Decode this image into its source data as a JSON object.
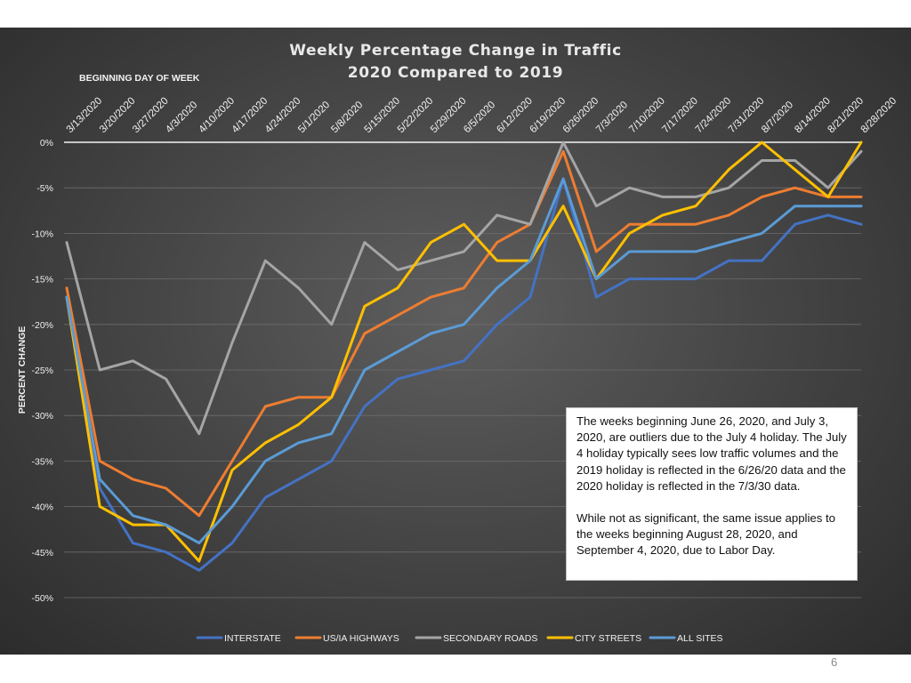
{
  "chart_data": {
    "type": "line",
    "title": [
      "Weekly Percentage Change in Traffic",
      "2020 Compared to 2019"
    ],
    "xlabel": "BEGINNING DAY OF WEEK",
    "ylabel": "PERCENT CHANGE",
    "ylim": [
      -50,
      0
    ],
    "y_ticks": [
      0,
      -5,
      -10,
      -15,
      -20,
      -25,
      -30,
      -35,
      -40,
      -45,
      -50
    ],
    "y_tick_labels": [
      "0%",
      "-5%",
      "-10%",
      "-15%",
      "-20%",
      "-25%",
      "-30%",
      "-35%",
      "-40%",
      "-45%",
      "-50%"
    ],
    "grid": true,
    "legend_position": "bottom",
    "categories": [
      "3/13/2020",
      "3/20/2020",
      "3/27/2020",
      "4/3/2020",
      "4/10/2020",
      "4/17/2020",
      "4/24/2020",
      "5/1/2020",
      "5/8/2020",
      "5/15/2020",
      "5/22/2020",
      "5/29/2020",
      "6/5/2020",
      "6/12/2020",
      "6/19/2020",
      "6/26/2020",
      "7/3/2020",
      "7/10/2020",
      "7/17/2020",
      "7/24/2020",
      "7/31/2020",
      "8/7/2020",
      "8/14/2020",
      "8/21/2020",
      "8/28/2020"
    ],
    "series": [
      {
        "name": "INTERSTATE",
        "color": "#4472c4",
        "values": [
          -17,
          -38,
          -44,
          -45,
          -47,
          -44,
          -39,
          -37,
          -35,
          -29,
          -26,
          -25,
          -24,
          -20,
          -17,
          -4,
          -17,
          -15,
          -15,
          -15,
          -13,
          -13,
          -9,
          -8,
          -9
        ]
      },
      {
        "name": "US/IA HIGHWAYS",
        "color": "#ed7d31",
        "values": [
          -16,
          -35,
          -37,
          -38,
          -41,
          -35,
          -29,
          -28,
          -28,
          -21,
          -19,
          -17,
          -16,
          -11,
          -9,
          -1,
          -12,
          -9,
          -9,
          -9,
          -8,
          -6,
          -5,
          -6,
          -6
        ]
      },
      {
        "name": "SECONDARY ROADS",
        "color": "#a5a5a5",
        "values": [
          -11,
          -25,
          -24,
          -26,
          -32,
          -22,
          -13,
          -16,
          -20,
          -11,
          -14,
          -13,
          -12,
          -8,
          -9,
          0,
          -7,
          -5,
          -6,
          -6,
          -5,
          -2,
          -2,
          -5,
          -1
        ]
      },
      {
        "name": "CITY STREETS",
        "color": "#ffc000",
        "values": [
          -17,
          -40,
          -42,
          -42,
          -46,
          -36,
          -33,
          -31,
          -28,
          -18,
          -16,
          -11,
          -9,
          -13,
          -13,
          -7,
          -15,
          -10,
          -8,
          -7,
          -3,
          0,
          -3,
          -6,
          0
        ]
      },
      {
        "name": "ALL SITES",
        "color": "#5b9bd5",
        "values": [
          -17,
          -37,
          -41,
          -42,
          -44,
          -40,
          -35,
          -33,
          -32,
          -25,
          -23,
          -21,
          -20,
          -16,
          -13,
          -4,
          -15,
          -12,
          -12,
          -12,
          -11,
          -10,
          -7,
          -7,
          -7
        ]
      }
    ]
  },
  "note": {
    "paragraph1": "The weeks beginning June 26, 2020, and July 3, 2020, are outliers due to the July 4 holiday. The July 4 holiday typically sees low traffic volumes and the 2019 holiday is reflected in the 6/26/20 data and the 2020 holiday is reflected in the 7/3/30 data.",
    "paragraph2": "While not as significant, the same issue applies to the weeks beginning August 28, 2020, and September 4, 2020, due to Labor Day."
  },
  "page_number": "6"
}
